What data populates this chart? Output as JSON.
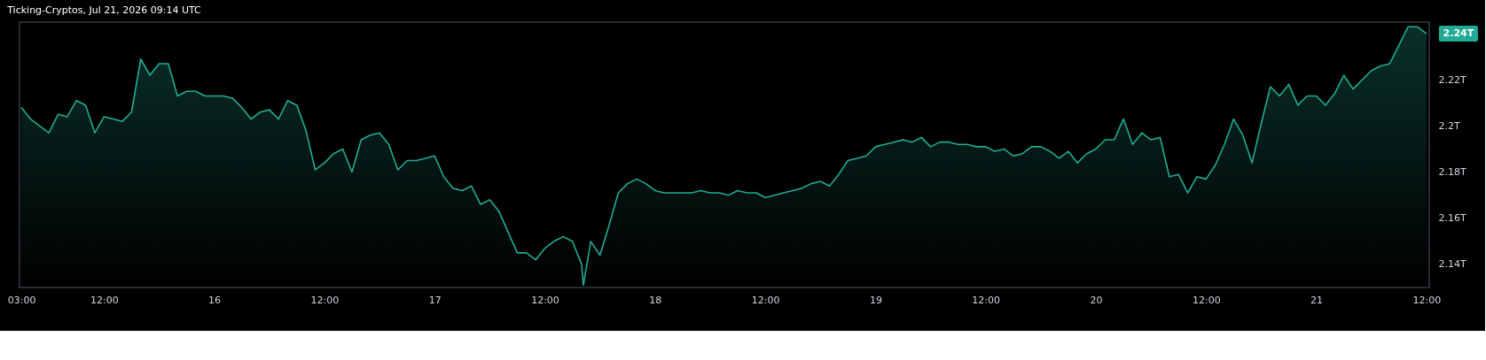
{
  "chart_data": {
    "type": "area",
    "title": "Ticking-Cryptos, Jul 21, 2026 09:14 UTC",
    "x": [
      "2026-07-15T03:00",
      "2026-07-15T04:00",
      "2026-07-15T05:00",
      "2026-07-15T06:00",
      "2026-07-15T07:00",
      "2026-07-15T08:00",
      "2026-07-15T09:00",
      "2026-07-15T10:00",
      "2026-07-15T11:00",
      "2026-07-15T12:00",
      "2026-07-15T13:00",
      "2026-07-15T14:00",
      "2026-07-15T15:00",
      "2026-07-15T16:00",
      "2026-07-15T17:00",
      "2026-07-15T18:00",
      "2026-07-15T19:00",
      "2026-07-15T20:00",
      "2026-07-15T21:00",
      "2026-07-15T22:00",
      "2026-07-15T23:00",
      "2026-07-16T00:00",
      "2026-07-16T01:00",
      "2026-07-16T02:00",
      "2026-07-16T03:00",
      "2026-07-16T04:00",
      "2026-07-16T05:00",
      "2026-07-16T06:00",
      "2026-07-16T07:00",
      "2026-07-16T08:00",
      "2026-07-16T09:00",
      "2026-07-16T10:00",
      "2026-07-16T11:00",
      "2026-07-16T12:00",
      "2026-07-16T13:00",
      "2026-07-16T14:00",
      "2026-07-16T15:00",
      "2026-07-16T16:00",
      "2026-07-16T17:00",
      "2026-07-16T18:00",
      "2026-07-16T19:00",
      "2026-07-16T20:00",
      "2026-07-16T21:00",
      "2026-07-16T22:00",
      "2026-07-16T23:00",
      "2026-07-17T00:00",
      "2026-07-17T01:00",
      "2026-07-17T02:00",
      "2026-07-17T03:00",
      "2026-07-17T04:00",
      "2026-07-17T05:00",
      "2026-07-17T06:00",
      "2026-07-17T07:00",
      "2026-07-17T08:00",
      "2026-07-17T09:00",
      "2026-07-17T10:00",
      "2026-07-17T11:00",
      "2026-07-17T12:00",
      "2026-07-17T13:00",
      "2026-07-17T14:00",
      "2026-07-17T15:00",
      "2026-07-17T16:00",
      "2026-07-17T16:12",
      "2026-07-17T17:00",
      "2026-07-17T18:00",
      "2026-07-17T19:00",
      "2026-07-17T20:00",
      "2026-07-17T21:00",
      "2026-07-17T22:00",
      "2026-07-17T23:00",
      "2026-07-18T00:00",
      "2026-07-18T01:00",
      "2026-07-18T02:00",
      "2026-07-18T03:00",
      "2026-07-18T04:00",
      "2026-07-18T05:00",
      "2026-07-18T06:00",
      "2026-07-18T07:00",
      "2026-07-18T08:00",
      "2026-07-18T09:00",
      "2026-07-18T10:00",
      "2026-07-18T11:00",
      "2026-07-18T12:00",
      "2026-07-18T13:00",
      "2026-07-18T14:00",
      "2026-07-18T15:00",
      "2026-07-18T16:00",
      "2026-07-18T17:00",
      "2026-07-18T18:00",
      "2026-07-18T19:00",
      "2026-07-18T20:00",
      "2026-07-18T21:00",
      "2026-07-18T22:00",
      "2026-07-18T23:00",
      "2026-07-19T00:00",
      "2026-07-19T01:00",
      "2026-07-19T02:00",
      "2026-07-19T03:00",
      "2026-07-19T04:00",
      "2026-07-19T05:00",
      "2026-07-19T06:00",
      "2026-07-19T07:00",
      "2026-07-19T08:00",
      "2026-07-19T09:00",
      "2026-07-19T10:00",
      "2026-07-19T11:00",
      "2026-07-19T12:00",
      "2026-07-19T13:00",
      "2026-07-19T14:00",
      "2026-07-19T15:00",
      "2026-07-19T16:00",
      "2026-07-19T17:00",
      "2026-07-19T18:00",
      "2026-07-19T19:00",
      "2026-07-19T20:00",
      "2026-07-19T21:00",
      "2026-07-19T22:00",
      "2026-07-19T23:00",
      "2026-07-20T00:00",
      "2026-07-20T01:00",
      "2026-07-20T02:00",
      "2026-07-20T03:00",
      "2026-07-20T04:00",
      "2026-07-20T05:00",
      "2026-07-20T06:00",
      "2026-07-20T07:00",
      "2026-07-20T08:00",
      "2026-07-20T09:00",
      "2026-07-20T10:00",
      "2026-07-20T11:00",
      "2026-07-20T12:00",
      "2026-07-20T13:00",
      "2026-07-20T14:00",
      "2026-07-20T15:00",
      "2026-07-20T16:00",
      "2026-07-20T17:00",
      "2026-07-20T18:00",
      "2026-07-20T19:00",
      "2026-07-20T20:00",
      "2026-07-20T21:00",
      "2026-07-20T22:00",
      "2026-07-20T23:00",
      "2026-07-21T00:00",
      "2026-07-21T01:00",
      "2026-07-21T02:00",
      "2026-07-21T03:00",
      "2026-07-21T04:00",
      "2026-07-21T05:00",
      "2026-07-21T06:00",
      "2026-07-21T07:00",
      "2026-07-21T08:00",
      "2026-07-21T09:00",
      "2026-07-21T10:00",
      "2026-07-21T11:00",
      "2026-07-21T12:00"
    ],
    "series": [
      {
        "color": "#22ab94",
        "values": [
          2.208,
          2.203,
          2.2,
          2.197,
          2.205,
          2.204,
          2.211,
          2.209,
          2.197,
          2.204,
          2.203,
          2.202,
          2.206,
          2.229,
          2.222,
          2.227,
          2.227,
          2.213,
          2.215,
          2.215,
          2.213,
          2.213,
          2.213,
          2.212,
          2.208,
          2.203,
          2.206,
          2.207,
          2.203,
          2.211,
          2.209,
          2.198,
          2.181,
          2.184,
          2.188,
          2.19,
          2.18,
          2.194,
          2.196,
          2.197,
          2.192,
          2.181,
          2.185,
          2.185,
          2.186,
          2.187,
          2.178,
          2.173,
          2.172,
          2.174,
          2.166,
          2.168,
          2.163,
          2.154,
          2.145,
          2.145,
          2.142,
          2.147,
          2.15,
          2.152,
          2.15,
          2.14,
          2.131,
          2.15,
          2.144,
          2.157,
          2.171,
          2.175,
          2.177,
          2.175,
          2.172,
          2.171,
          2.171,
          2.171,
          2.171,
          2.172,
          2.171,
          2.171,
          2.17,
          2.172,
          2.171,
          2.171,
          2.169,
          2.17,
          2.171,
          2.172,
          2.173,
          2.175,
          2.176,
          2.174,
          2.179,
          2.185,
          2.186,
          2.187,
          2.191,
          2.192,
          2.193,
          2.194,
          2.193,
          2.195,
          2.191,
          2.193,
          2.193,
          2.192,
          2.192,
          2.191,
          2.191,
          2.189,
          2.19,
          2.187,
          2.188,
          2.191,
          2.191,
          2.189,
          2.186,
          2.189,
          2.184,
          2.188,
          2.19,
          2.194,
          2.194,
          2.203,
          2.192,
          2.197,
          2.194,
          2.195,
          2.178,
          2.179,
          2.171,
          2.178,
          2.177,
          2.183,
          2.192,
          2.203,
          2.196,
          2.184,
          2.201,
          2.217,
          2.213,
          2.218,
          2.209,
          2.213,
          2.213,
          2.209,
          2.214,
          2.222,
          2.216,
          2.22,
          2.224,
          2.226,
          2.227,
          2.235,
          2.243,
          2.243,
          2.24
        ]
      }
    ],
    "xlim": [
      "2026-07-15T02:48",
      "2026-07-21T12:18"
    ],
    "xticks": [
      {
        "value": "2026-07-15T03:00",
        "label": "03:00"
      },
      {
        "value": "2026-07-15T12:00",
        "label": "12:00"
      },
      {
        "value": "2026-07-16",
        "label": "16"
      },
      {
        "value": "2026-07-16T12:00",
        "label": "12:00"
      },
      {
        "value": "2026-07-17",
        "label": "17"
      },
      {
        "value": "2026-07-17T12:00",
        "label": "12:00"
      },
      {
        "value": "2026-07-18",
        "label": "18"
      },
      {
        "value": "2026-07-18T12:00",
        "label": "12:00"
      },
      {
        "value": "2026-07-19",
        "label": "19"
      },
      {
        "value": "2026-07-19T12:00",
        "label": "12:00"
      },
      {
        "value": "2026-07-20",
        "label": "20"
      },
      {
        "value": "2026-07-20T12:00",
        "label": "12:00"
      },
      {
        "value": "2026-07-21",
        "label": "21"
      },
      {
        "value": "2026-07-21T12:00",
        "label": "12:00"
      }
    ],
    "ylim": [
      2.13,
      2.245
    ],
    "yticks": [
      {
        "value": 2.14,
        "label": "2.14T"
      },
      {
        "value": 2.16,
        "label": "2.16T"
      },
      {
        "value": 2.18,
        "label": "2.18T"
      },
      {
        "value": 2.2,
        "label": "2.2T"
      },
      {
        "value": 2.22,
        "label": "2.22T"
      }
    ],
    "annotations": [
      {
        "text": "2.24T",
        "x": "2026-07-21T12:00",
        "y": 2.24
      }
    ]
  }
}
